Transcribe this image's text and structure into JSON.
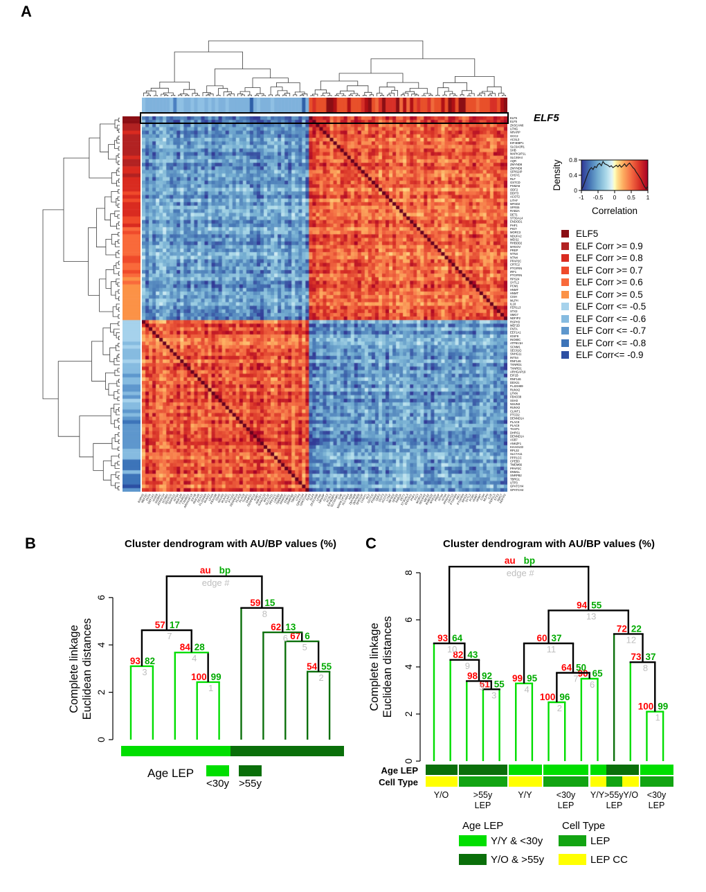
{
  "panels": {
    "a": "A",
    "b": "B",
    "c": "C"
  },
  "colors": {
    "bright": "#00DE00",
    "dark": "#0A6F0A",
    "green": "#12A412",
    "yellow": "#FFFF00",
    "au": "#FF0000",
    "bp": "#00AA00",
    "edge_number": "#BEBEBE",
    "black": "#000000",
    "dendro_gray": "#3a3a3a"
  },
  "chart_data": [
    {
      "id": "correlation-heatmap",
      "type": "heatmap",
      "description": "Pairwise correlation heatmap of ELF5 and ELF5-correlated / anti-correlated genes with row and column dendrograms and correlation-class side bars",
      "highlight_label": "ELF5",
      "n_positive": 57,
      "value_range": [
        -1,
        1
      ],
      "genes": [
        "ELF5",
        "ELF5",
        "ZKSCAN6",
        "LFNG",
        "NRARP",
        "GCC2",
        "ACSL3",
        "EIF4EBP1",
        "SLC9A3R1",
        "SHB",
        "MAPK1IP1L",
        "SLC46A4",
        "AQR",
        "ZMYND8",
        "ZMYND8",
        "SFRS2IP",
        "CHSY1",
        "RLF",
        "GSTCD",
        "PSMA6",
        "ODF2",
        "DDIT3",
        "ACOT2",
        "LITAF",
        "MFSD2",
        "SFRS5",
        "RAB2A",
        "DET1",
        "ST3GAL4",
        "ENDOD1",
        "PHF1",
        "PIGT",
        "MORC3",
        "NDUFA2",
        "MEIS2",
        "RHBDD2",
        "MYEOV",
        "PREP",
        "NTN4",
        "NTN4",
        "PPAP2C",
        "CRTC2",
        "PTGFRN",
        "IRF1",
        "PTGFRN",
        "RPS24",
        "SYTL2",
        "PCM1",
        "HNMT",
        "HNMT",
        "CISH",
        "MLPH",
        "IL18",
        "FER1L3",
        "STX3",
        "SMG7",
        "NDFIP2",
        "RSPH3",
        "MEF2D",
        "FNTA",
        "EEF1A1",
        "IGSF8",
        "INO80C",
        "ATP6V1H",
        "SCNM1",
        "SEC61G",
        "SNHG11",
        "INTS4",
        "RNF146",
        "TXNRD1",
        "TXNRD1",
        "ARHGAP19",
        "EIF1B",
        "RNF146",
        "DDX21",
        "FLJ23469",
        "RUNX2",
        "LPXN",
        "FBXO38",
        "SSH3",
        "NSUN3",
        "RUNX2",
        "CLINT1",
        "PTCD2",
        "DENND1A",
        "PLAC8",
        "PLAC8",
        "THAP1",
        "DHRS1",
        "DENND1A",
        "ASB7",
        "ANKZF1",
        "KIAA0133",
        "RPL32",
        "SLC7A11",
        "PPP1CC",
        "CPEB3",
        "TMEM66",
        "PPAP2C",
        "DNM1L",
        "SNRPB2",
        "TBRG1",
        "UTP3",
        "GPATCH4",
        "GPATCH4"
      ],
      "side_legend": [
        {
          "label": "ELF5",
          "color": "#8B0E14"
        },
        {
          "label": "ELF Corr >= 0.9",
          "color": "#B22222"
        },
        {
          "label": "ELF Corr >= 0.8",
          "color": "#D92B20"
        },
        {
          "label": "ELF Corr >= 0.7",
          "color": "#EF4A2B"
        },
        {
          "label": "ELF Corr >= 0.6",
          "color": "#F96A3B"
        },
        {
          "label": "ELF Corr >= 0.5",
          "color": "#FB9247"
        },
        {
          "label": "ELF Corr <= -0.5",
          "color": "#A6D2EC"
        },
        {
          "label": "ELF Corr <= -0.6",
          "color": "#86BBE0"
        },
        {
          "label": "ELF Corr <= -0.7",
          "color": "#5E97CD"
        },
        {
          "label": "ELF Corr <= -0.8",
          "color": "#3D74B9"
        },
        {
          "label": "ELF Corr<= -0.9",
          "color": "#2C4FA3"
        }
      ]
    },
    {
      "id": "density-color-key",
      "type": "line",
      "title": "Correlation",
      "xlabel": "Correlation",
      "ylabel": "Density",
      "xlim": [
        -1,
        1
      ],
      "ylim": [
        0,
        0.8
      ],
      "xticks": [
        "-1",
        "-0.5",
        "0",
        "0.5",
        "1"
      ],
      "yticks": [
        "0",
        "0.4",
        "0.8"
      ],
      "points": [
        [
          -1,
          0.02
        ],
        [
          -0.95,
          0.1
        ],
        [
          -0.9,
          0.22
        ],
        [
          -0.85,
          0.34
        ],
        [
          -0.8,
          0.46
        ],
        [
          -0.75,
          0.55
        ],
        [
          -0.7,
          0.6
        ],
        [
          -0.65,
          0.55
        ],
        [
          -0.6,
          0.63
        ],
        [
          -0.55,
          0.6
        ],
        [
          -0.5,
          0.68
        ],
        [
          -0.45,
          0.71
        ],
        [
          -0.4,
          0.65
        ],
        [
          -0.35,
          0.76
        ],
        [
          -0.3,
          0.7
        ],
        [
          -0.25,
          0.68
        ],
        [
          -0.2,
          0.66
        ],
        [
          -0.15,
          0.62
        ],
        [
          -0.1,
          0.65
        ],
        [
          -0.05,
          0.6
        ],
        [
          0,
          0.63
        ],
        [
          0.05,
          0.66
        ],
        [
          0.1,
          0.62
        ],
        [
          0.15,
          0.67
        ],
        [
          0.2,
          0.61
        ],
        [
          0.25,
          0.65
        ],
        [
          0.3,
          0.7
        ],
        [
          0.35,
          0.63
        ],
        [
          0.4,
          0.68
        ],
        [
          0.45,
          0.72
        ],
        [
          0.5,
          0.66
        ],
        [
          0.55,
          0.6
        ],
        [
          0.6,
          0.56
        ],
        [
          0.65,
          0.48
        ],
        [
          0.7,
          0.42
        ],
        [
          0.75,
          0.35
        ],
        [
          0.8,
          0.28
        ],
        [
          0.85,
          0.18
        ],
        [
          0.9,
          0.1
        ],
        [
          0.95,
          0.04
        ],
        [
          1,
          0.12
        ]
      ]
    },
    {
      "id": "dendrogram-B",
      "type": "dendrogram",
      "title": "Cluster dendrogram with AU/BP values (%)",
      "ylabel_lines": [
        "Complete linkage",
        "Euclidean distances"
      ],
      "yticks": [
        0,
        2,
        4,
        6
      ],
      "node_label_legend": {
        "au": "au",
        "bp": "bp",
        "edge": "edge #"
      },
      "tree": {
        "root": true,
        "h": 6.9,
        "lc": "black",
        "c": [
          {
            "edge": 7,
            "au": 57,
            "bp": 17,
            "h": 4.62,
            "lc": "black",
            "c": [
              {
                "edge": 3,
                "au": 93,
                "bp": 82,
                "h": 3.1,
                "lc": "bright",
                "c": [
                  {
                    "leaf": 1
                  },
                  {
                    "leaf": 1
                  }
                ]
              },
              {
                "edge": 4,
                "au": 84,
                "bp": 28,
                "h": 3.68,
                "lc": "bright",
                "c": [
                  {
                    "leaf": 1
                  },
                  {
                    "edge": 1,
                    "au": 100,
                    "bp": 99,
                    "h": 2.43,
                    "lc": "bright",
                    "c": [
                      {
                        "leaf": 1
                      },
                      {
                        "leaf": 1
                      }
                    ]
                  }
                ]
              }
            ]
          },
          {
            "edge": 8,
            "au": 59,
            "bp": 15,
            "h": 5.56,
            "lc": "black",
            "c": [
              {
                "leaf": 1
              },
              {
                "edge": 6,
                "au": 62,
                "bp": 13,
                "h": 4.53,
                "lc": "dark",
                "c": [
                  {
                    "leaf": 1
                  },
                  {
                    "edge": 5,
                    "au": 67,
                    "bp": 6,
                    "h": 4.15,
                    "lc": "dark",
                    "c": [
                      {
                        "leaf": 1
                      },
                      {
                        "edge": 2,
                        "au": 54,
                        "bp": 55,
                        "h": 2.87,
                        "lc": "dark",
                        "c": [
                          {
                            "leaf": 1
                          },
                          {
                            "leaf": 1
                          }
                        ]
                      }
                    ]
                  }
                ]
              }
            ]
          }
        ]
      },
      "leaf_colors": [
        "bright",
        "bright",
        "bright",
        "bright",
        "bright",
        "dark",
        "dark",
        "dark",
        "dark",
        "dark"
      ],
      "bar": [
        {
          "label": "<30y",
          "color": "bright",
          "count": 5
        },
        {
          "label": ">55y",
          "color": "dark",
          "count": 5
        }
      ],
      "legend": {
        "title": "Age LEP",
        "items": [
          {
            "label": "<30y",
            "color": "bright"
          },
          {
            "label": ">55y",
            "color": "dark"
          }
        ]
      }
    },
    {
      "id": "dendrogram-C",
      "type": "dendrogram",
      "title": "Cluster dendrogram with AU/BP values (%)",
      "ylabel_lines": [
        "Complete linkage",
        "Euclidean distances"
      ],
      "yticks": [
        0,
        2,
        4,
        6,
        8
      ],
      "node_label_legend": {
        "au": "au",
        "bp": "bp",
        "edge": "edge #"
      },
      "tree": {
        "root": true,
        "h": 8.26,
        "lc": "black",
        "c": [
          {
            "edge": 10,
            "au": 93,
            "bp": 64,
            "h": 5.0,
            "lc": "black",
            "c": [
              {
                "leaf": 1
              },
              {
                "edge": 9,
                "au": 82,
                "bp": 43,
                "h": 4.3,
                "lc": "black",
                "c": [
                  {
                    "leaf": 1
                  },
                  {
                    "edge": 5,
                    "au": 98,
                    "bp": 92,
                    "h": 3.4,
                    "lc": "black",
                    "c": [
                      {
                        "leaf": 1
                      },
                      {
                        "edge": 3,
                        "au": 61,
                        "bp": 55,
                        "h": 3.05,
                        "lc": "black",
                        "c": [
                          {
                            "leaf": 1
                          },
                          {
                            "leaf": 1
                          }
                        ]
                      }
                    ]
                  }
                ]
              }
            ]
          },
          {
            "edge": 13,
            "au": 94,
            "bp": 55,
            "h": 6.4,
            "lc": "black",
            "c": [
              {
                "edge": 11,
                "au": 60,
                "bp": 37,
                "h": 5.0,
                "lc": "black",
                "c": [
                  {
                    "edge": 4,
                    "au": 99,
                    "bp": 95,
                    "h": 3.3,
                    "lc": "bright",
                    "c": [
                      {
                        "leaf": 1
                      },
                      {
                        "leaf": 1
                      }
                    ]
                  },
                  {
                    "edge": 7,
                    "au": 64,
                    "bp": 50,
                    "h": 3.75,
                    "lc": "black",
                    "c": [
                      {
                        "edge": 2,
                        "au": 100,
                        "bp": 96,
                        "h": 2.5,
                        "lc": "bright",
                        "c": [
                          {
                            "leaf": 1
                          },
                          {
                            "leaf": 1
                          }
                        ]
                      },
                      {
                        "edge": 6,
                        "au": 90,
                        "bp": 65,
                        "h": 3.5,
                        "lc": "bright",
                        "c": [
                          {
                            "leaf": 1
                          },
                          {
                            "leaf": 1
                          }
                        ]
                      }
                    ]
                  }
                ]
              },
              {
                "edge": 12,
                "au": 72,
                "bp": 22,
                "h": 5.4,
                "lc": "black",
                "c": [
                  {
                    "leaf": 1
                  },
                  {
                    "edge": 8,
                    "au": 73,
                    "bp": 37,
                    "h": 4.2,
                    "lc": "black",
                    "c": [
                      {
                        "leaf": 1
                      },
                      {
                        "edge": 1,
                        "au": 100,
                        "bp": 99,
                        "h": 2.1,
                        "lc": "bright",
                        "c": [
                          {
                            "leaf": 1
                          },
                          {
                            "leaf": 1
                          }
                        ]
                      }
                    ]
                  }
                ]
              }
            ]
          }
        ]
      },
      "leaf_colors": [
        "bright",
        "bright",
        "bright",
        "bright",
        "bright",
        "bright",
        "bright",
        "bright",
        "bright",
        "bright",
        "bright",
        "dark",
        "bright",
        "bright",
        "bright"
      ],
      "annotation_rows": [
        "Age LEP",
        "Cell Type"
      ],
      "groups": [
        {
          "lines": [
            "Y/O"
          ],
          "age": [
            "dark",
            "dark"
          ],
          "cell": [
            "yellow",
            "yellow"
          ]
        },
        {
          "lines": [
            ">55y",
            "LEP"
          ],
          "age": [
            "dark",
            "dark",
            "dark"
          ],
          "cell": [
            "green",
            "green",
            "green"
          ]
        },
        {
          "lines": [
            "Y/Y"
          ],
          "age": [
            "bright",
            "bright"
          ],
          "cell": [
            "yellow",
            "yellow"
          ]
        },
        {
          "lines": [
            "<30y",
            "LEP"
          ],
          "age": [
            "bright",
            "bright",
            "bright"
          ],
          "cell": [
            "green",
            "green",
            "green"
          ]
        },
        {
          "lines": [
            "Y/Y>55yY/O",
            "LEP"
          ],
          "age": [
            "bright",
            "dark",
            "dark"
          ],
          "cell": [
            "yellow",
            "green",
            "yellow"
          ]
        },
        {
          "lines": [
            "<30y",
            "LEP"
          ],
          "age": [
            "bright",
            "bright"
          ],
          "cell": [
            "green",
            "green"
          ]
        }
      ],
      "legends": [
        {
          "title": "Age LEP",
          "items": [
            {
              "label": "Y/Y & <30y",
              "color": "bright"
            },
            {
              "label": "Y/O & >55y",
              "color": "dark"
            }
          ]
        },
        {
          "title": "Cell Type",
          "items": [
            {
              "label": "LEP",
              "color": "green"
            },
            {
              "label": "LEP CC",
              "color": "yellow"
            }
          ]
        }
      ]
    }
  ]
}
